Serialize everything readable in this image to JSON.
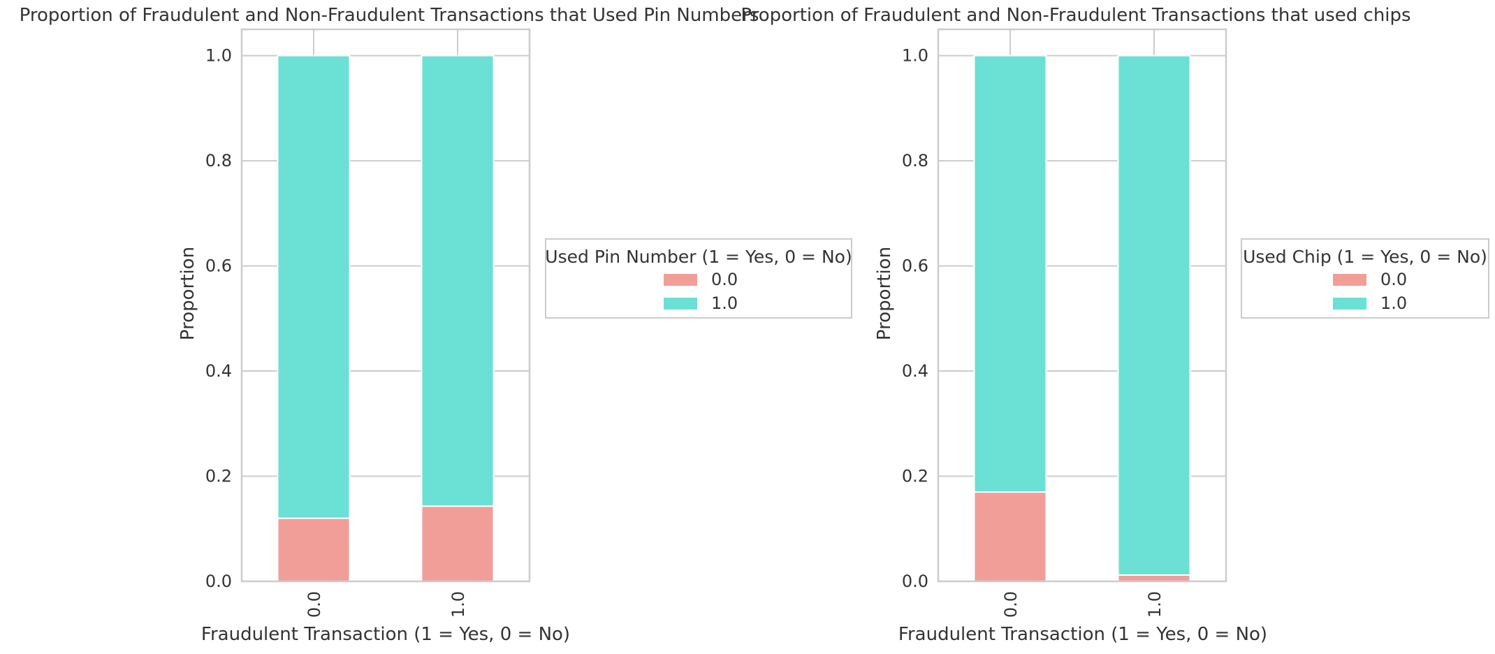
{
  "colors": {
    "series_0": "#f29e98",
    "series_1": "#6be0d4"
  },
  "chart_data": [
    {
      "type": "bar",
      "stacked": true,
      "title": "Proportion of Fraudulent and Non-Fraudulent Transactions that Used Pin Numbers",
      "xlabel": "Fraudulent Transaction (1 = Yes, 0 = No)",
      "ylabel": "Proportion",
      "categories": [
        "0.0",
        "1.0"
      ],
      "ylim": [
        0,
        1.05
      ],
      "yticks": [
        "0.0",
        "0.2",
        "0.4",
        "0.6",
        "0.8",
        "1.0"
      ],
      "grid": true,
      "legend": {
        "title": "Used Pin Number (1 = Yes, 0 = No)",
        "placement": "outside-right"
      },
      "series": [
        {
          "name": "0.0",
          "values": [
            0.12,
            0.143
          ]
        },
        {
          "name": "1.0",
          "values": [
            0.88,
            0.857
          ]
        }
      ]
    },
    {
      "type": "bar",
      "stacked": true,
      "title": "Proportion of Fraudulent and Non-Fraudulent Transactions that used chips",
      "xlabel": "Fraudulent Transaction (1 = Yes, 0 = No)",
      "ylabel": "Proportion",
      "categories": [
        "0.0",
        "1.0"
      ],
      "ylim": [
        0,
        1.05
      ],
      "yticks": [
        "0.0",
        "0.2",
        "0.4",
        "0.6",
        "0.8",
        "1.0"
      ],
      "grid": true,
      "legend": {
        "title": "Used Chip (1 = Yes, 0 = No)",
        "placement": "outside-right"
      },
      "series": [
        {
          "name": "0.0",
          "values": [
            0.17,
            0.012
          ]
        },
        {
          "name": "1.0",
          "values": [
            0.83,
            0.988
          ]
        }
      ]
    }
  ]
}
